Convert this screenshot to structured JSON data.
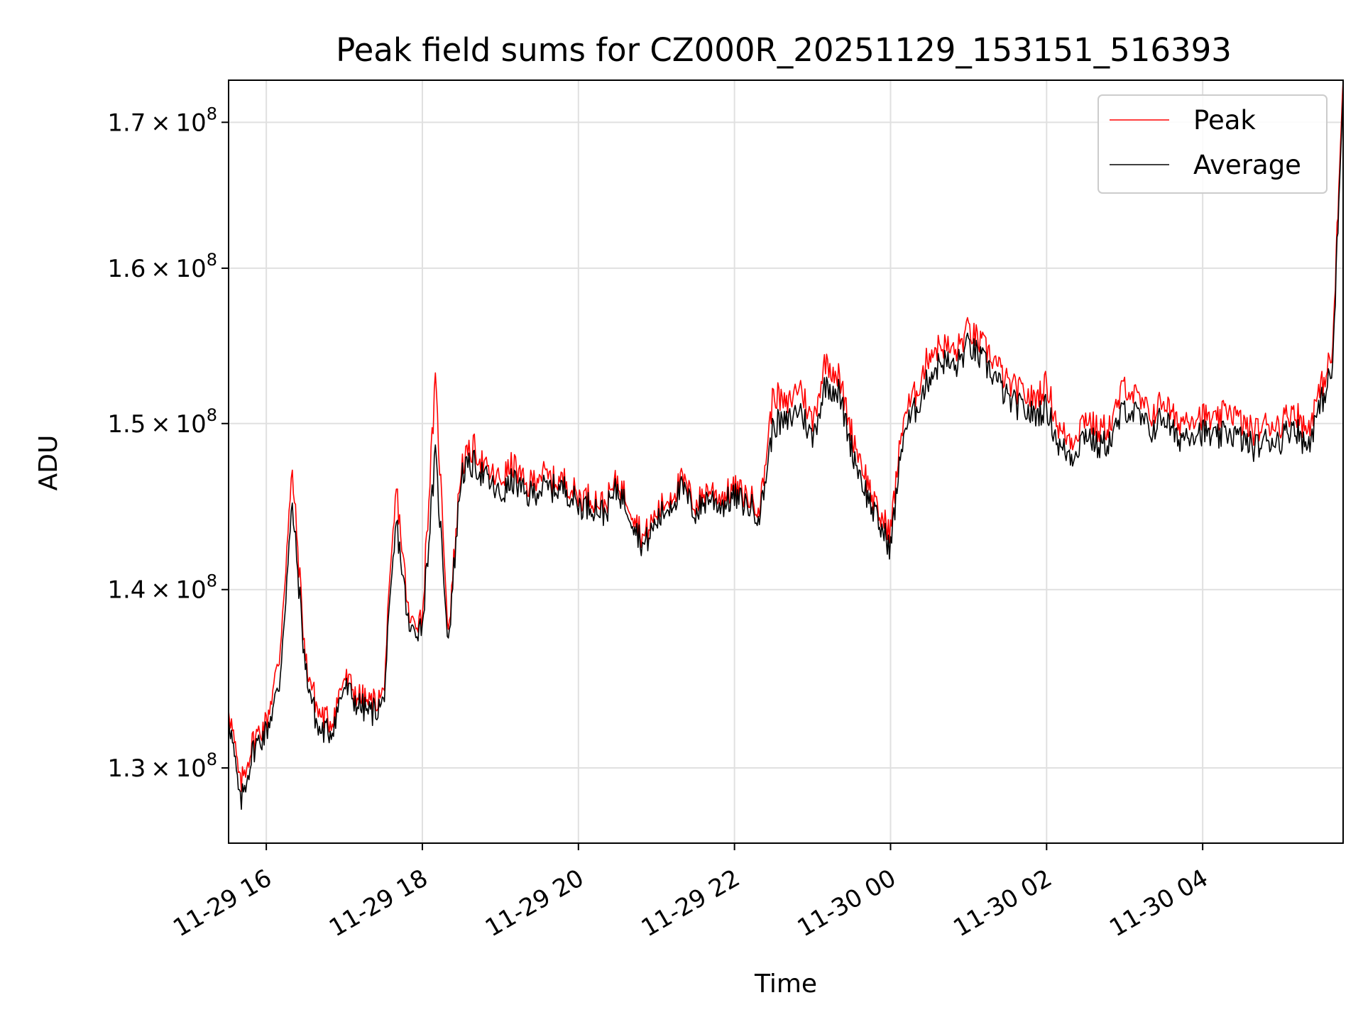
{
  "chart_data": {
    "type": "line",
    "title": "Peak field sums for CZ000R_20251129_153151_516393",
    "xlabel": "Time",
    "ylabel": "ADU",
    "y_scale": "log",
    "x_ticks": [
      "11-29 16",
      "11-29 18",
      "11-29 20",
      "11-29 22",
      "11-30 00",
      "11-30 02",
      "11-30 04"
    ],
    "y_ticks": [
      {
        "value": 130000000,
        "mantissa": "1.3",
        "base": "10",
        "exp": "8"
      },
      {
        "value": 140000000,
        "mantissa": "1.4",
        "base": "10",
        "exp": "8"
      },
      {
        "value": 150000000,
        "mantissa": "1.5",
        "base": "10",
        "exp": "8"
      },
      {
        "value": 160000000,
        "mantissa": "1.6",
        "base": "10",
        "exp": "8"
      },
      {
        "value": 170000000,
        "mantissa": "1.7",
        "base": "10",
        "exp": "8"
      }
    ],
    "x_range": [
      "2025-11-29 15:31",
      "2025-11-30 05:48"
    ],
    "ylim": [
      126000000,
      173000000
    ],
    "grid": true,
    "legend_position": "upper right",
    "colors": {
      "peak": "#ff0000",
      "average": "#000000",
      "grid": "#e0e0e0"
    },
    "series": [
      {
        "name": "Peak",
        "x": [
          "2025-11-29 15:31",
          "2025-11-29 15:40",
          "2025-11-29 15:50",
          "2025-11-29 16:00",
          "2025-11-29 16:10",
          "2025-11-29 16:20",
          "2025-11-29 16:30",
          "2025-11-29 16:40",
          "2025-11-29 16:50",
          "2025-11-29 17:00",
          "2025-11-29 17:10",
          "2025-11-29 17:20",
          "2025-11-29 17:30",
          "2025-11-29 17:40",
          "2025-11-29 17:50",
          "2025-11-29 18:00",
          "2025-11-29 18:10",
          "2025-11-29 18:20",
          "2025-11-29 18:30",
          "2025-11-29 18:40",
          "2025-11-29 18:50",
          "2025-11-29 19:00",
          "2025-11-29 19:10",
          "2025-11-29 19:20",
          "2025-11-29 19:30",
          "2025-11-29 19:40",
          "2025-11-29 19:50",
          "2025-11-29 20:00",
          "2025-11-29 20:10",
          "2025-11-29 20:20",
          "2025-11-29 20:30",
          "2025-11-29 20:40",
          "2025-11-29 20:50",
          "2025-11-29 21:00",
          "2025-11-29 21:10",
          "2025-11-29 21:20",
          "2025-11-29 21:30",
          "2025-11-29 21:40",
          "2025-11-29 21:50",
          "2025-11-29 22:00",
          "2025-11-29 22:10",
          "2025-11-29 22:20",
          "2025-11-29 22:30",
          "2025-11-29 22:40",
          "2025-11-29 22:50",
          "2025-11-29 23:00",
          "2025-11-29 23:10",
          "2025-11-29 23:20",
          "2025-11-29 23:30",
          "2025-11-29 23:40",
          "2025-11-29 23:50",
          "2025-11-30 00:00",
          "2025-11-30 00:10",
          "2025-11-30 00:20",
          "2025-11-30 00:30",
          "2025-11-30 00:40",
          "2025-11-30 00:50",
          "2025-11-30 01:00",
          "2025-11-30 01:10",
          "2025-11-30 01:20",
          "2025-11-30 01:30",
          "2025-11-30 01:40",
          "2025-11-30 01:50",
          "2025-11-30 02:00",
          "2025-11-30 02:10",
          "2025-11-30 02:20",
          "2025-11-30 02:30",
          "2025-11-30 02:40",
          "2025-11-30 02:50",
          "2025-11-30 03:00",
          "2025-11-30 03:10",
          "2025-11-30 03:20",
          "2025-11-30 03:30",
          "2025-11-30 03:40",
          "2025-11-30 03:50",
          "2025-11-30 04:00",
          "2025-11-30 04:10",
          "2025-11-30 04:20",
          "2025-11-30 04:30",
          "2025-11-30 04:40",
          "2025-11-30 04:50",
          "2025-11-30 05:00",
          "2025-11-30 05:10",
          "2025-11-30 05:20",
          "2025-11-30 05:30",
          "2025-11-30 05:40",
          "2025-11-30 05:48"
        ],
        "values": [
          133500000,
          129000000,
          131500000,
          132500000,
          136000000,
          147000000,
          136000000,
          133000000,
          132500000,
          135000000,
          134000000,
          133500000,
          134000000,
          146000000,
          138000000,
          138500000,
          152500000,
          137500000,
          147500000,
          148500000,
          147000000,
          146500000,
          147500000,
          146000000,
          147000000,
          146500000,
          146500000,
          145500000,
          145500000,
          145000000,
          146500000,
          145000000,
          143000000,
          144500000,
          145500000,
          146500000,
          145000000,
          146000000,
          145500000,
          146000000,
          145500000,
          145000000,
          152000000,
          151000000,
          152500000,
          150000000,
          154000000,
          153000000,
          149500000,
          147000000,
          144500000,
          143500000,
          150500000,
          152000000,
          154500000,
          155000000,
          154500000,
          156000000,
          155000000,
          154000000,
          152500000,
          152000000,
          151500000,
          152500000,
          149500000,
          149000000,
          150500000,
          149500000,
          150000000,
          152500000,
          151500000,
          150500000,
          151500000,
          150000000,
          150500000,
          150500000,
          150000000,
          151000000,
          150000000,
          149500000,
          150000000,
          150000000,
          151000000,
          149500000,
          152000000,
          154500000,
          173000000
        ]
      },
      {
        "name": "Average",
        "x": [
          "2025-11-29 15:31",
          "2025-11-29 15:40",
          "2025-11-29 15:50",
          "2025-11-29 16:00",
          "2025-11-29 16:10",
          "2025-11-29 16:20",
          "2025-11-29 16:30",
          "2025-11-29 16:40",
          "2025-11-29 16:50",
          "2025-11-29 17:00",
          "2025-11-29 17:10",
          "2025-11-29 17:20",
          "2025-11-29 17:30",
          "2025-11-29 17:40",
          "2025-11-29 17:50",
          "2025-11-29 18:00",
          "2025-11-29 18:10",
          "2025-11-29 18:20",
          "2025-11-29 18:30",
          "2025-11-29 18:40",
          "2025-11-29 18:50",
          "2025-11-29 19:00",
          "2025-11-29 19:10",
          "2025-11-29 19:20",
          "2025-11-29 19:30",
          "2025-11-29 19:40",
          "2025-11-29 19:50",
          "2025-11-29 20:00",
          "2025-11-29 20:10",
          "2025-11-29 20:20",
          "2025-11-29 20:30",
          "2025-11-29 20:40",
          "2025-11-29 20:50",
          "2025-11-29 21:00",
          "2025-11-29 21:10",
          "2025-11-29 21:20",
          "2025-11-29 21:30",
          "2025-11-29 21:40",
          "2025-11-29 21:50",
          "2025-11-29 22:00",
          "2025-11-29 22:10",
          "2025-11-29 22:20",
          "2025-11-29 22:30",
          "2025-11-29 22:40",
          "2025-11-29 22:50",
          "2025-11-29 23:00",
          "2025-11-29 23:10",
          "2025-11-29 23:20",
          "2025-11-29 23:30",
          "2025-11-29 23:40",
          "2025-11-29 23:50",
          "2025-11-30 00:00",
          "2025-11-30 00:10",
          "2025-11-30 00:20",
          "2025-11-30 00:30",
          "2025-11-30 00:40",
          "2025-11-30 00:50",
          "2025-11-30 01:00",
          "2025-11-30 01:10",
          "2025-11-30 01:20",
          "2025-11-30 01:30",
          "2025-11-30 01:40",
          "2025-11-30 01:50",
          "2025-11-30 02:00",
          "2025-11-30 02:10",
          "2025-11-30 02:20",
          "2025-11-30 02:30",
          "2025-11-30 02:40",
          "2025-11-30 02:50",
          "2025-11-30 03:00",
          "2025-11-30 03:10",
          "2025-11-30 03:20",
          "2025-11-30 03:30",
          "2025-11-30 03:40",
          "2025-11-30 03:50",
          "2025-11-30 04:00",
          "2025-11-30 04:10",
          "2025-11-30 04:20",
          "2025-11-30 04:30",
          "2025-11-30 04:40",
          "2025-11-30 04:50",
          "2025-11-30 05:00",
          "2025-11-30 05:10",
          "2025-11-30 05:20",
          "2025-11-30 05:30",
          "2025-11-30 05:40",
          "2025-11-30 05:48"
        ],
        "values": [
          133000000,
          128000000,
          131000000,
          132000000,
          134500000,
          145000000,
          135500000,
          132000000,
          132000000,
          134500000,
          133500000,
          133000000,
          133500000,
          144000000,
          137500000,
          138000000,
          148000000,
          137000000,
          147000000,
          147500000,
          146500000,
          145500000,
          146500000,
          145500000,
          146000000,
          146000000,
          146000000,
          145000000,
          145000000,
          144500000,
          146000000,
          144500000,
          142500000,
          144000000,
          145000000,
          146000000,
          144500000,
          145500000,
          145000000,
          145500000,
          145000000,
          144500000,
          150000000,
          150000000,
          151000000,
          149000000,
          152500000,
          152000000,
          148500000,
          146000000,
          144000000,
          142500000,
          149500000,
          151000000,
          153000000,
          154000000,
          153500000,
          155000000,
          154000000,
          153000000,
          151500000,
          151000000,
          150500000,
          151000000,
          148500000,
          148000000,
          149500000,
          148500000,
          149000000,
          151000000,
          150500000,
          149500000,
          150500000,
          149000000,
          149500000,
          149500000,
          149000000,
          149500000,
          149000000,
          148500000,
          149000000,
          149000000,
          150000000,
          148500000,
          151000000,
          153500000,
          172000000
        ]
      }
    ]
  }
}
